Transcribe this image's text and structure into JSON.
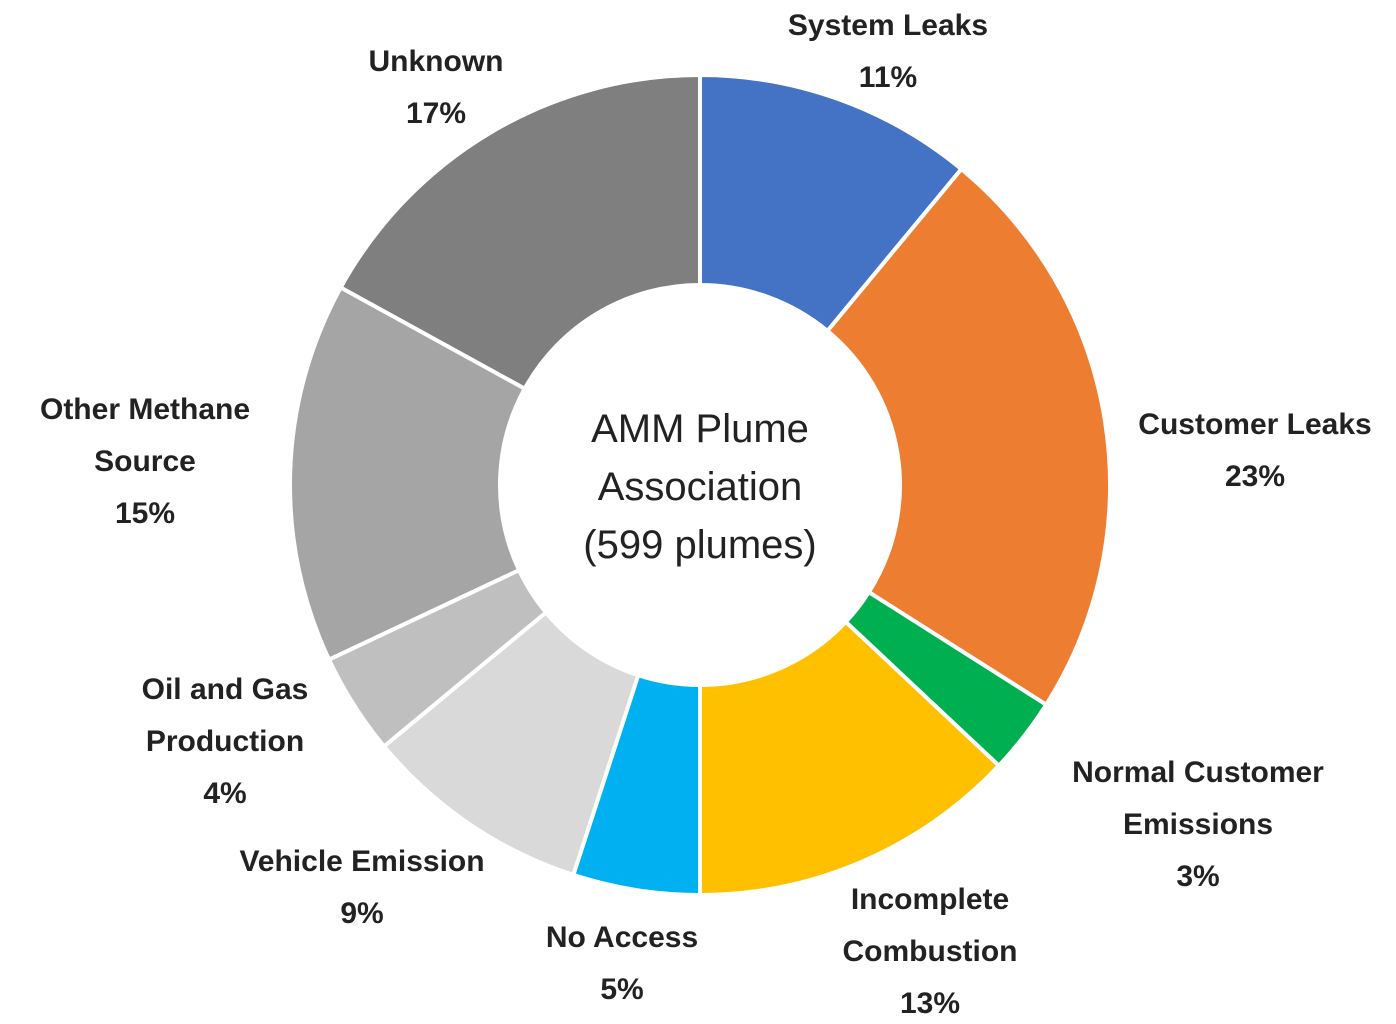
{
  "chart_data": {
    "type": "donut",
    "title": "AMM Plume Association (599 plumes)",
    "categories": [
      "System Leaks",
      "Customer Leaks",
      "Normal Customer Emissions",
      "Incomplete Combustion",
      "No Access",
      "Vehicle Emission",
      "Oil and Gas Production",
      "Other Methane Source",
      "Unknown"
    ],
    "values": [
      11,
      23,
      3,
      13,
      5,
      9,
      4,
      15,
      17
    ],
    "value_labels": [
      "11%",
      "23%",
      "3%",
      "13%",
      "5%",
      "9%",
      "4%",
      "15%",
      "17%"
    ],
    "colors": [
      "#4472c4",
      "#ed7d31",
      "#00b050",
      "#ffc000",
      "#00b0f0",
      "#d9d9d9",
      "#bfbfbf",
      "#a5a5a5",
      "#7f7f7f"
    ]
  }
}
